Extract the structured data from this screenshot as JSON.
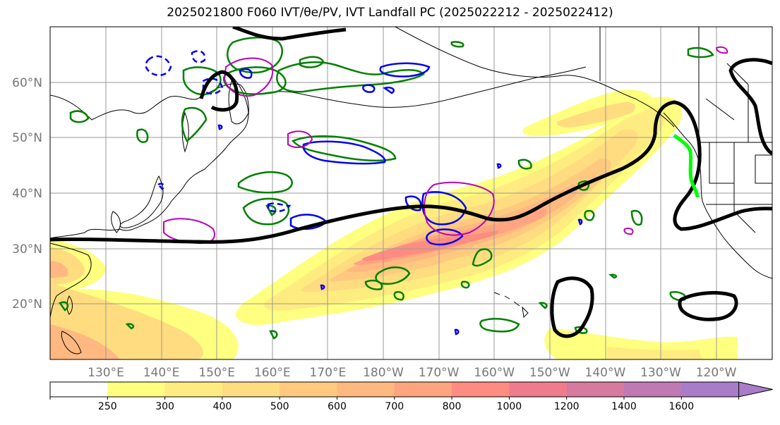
{
  "title": "2025021800 F060 IVT/θe/PV, IVT Landfall PC (2025022212 - 2025022412)",
  "latitude_labels": [
    "60°N",
    "50°N",
    "40°N",
    "30°N",
    "20°N"
  ],
  "longitude_labels": [
    "130°E",
    "140°E",
    "150°E",
    "160°E",
    "170°E",
    "180°W",
    "170°W",
    "160°W",
    "150°W",
    "140°W",
    "130°W",
    "120°W"
  ],
  "colorbar": {
    "tick_labels": [
      "250",
      "300",
      "400",
      "500",
      "600",
      "700",
      "800",
      "1000",
      "1200",
      "1400",
      "1600"
    ],
    "colors": [
      "#ffffff",
      "#ffff80",
      "#ffec80",
      "#ffdc80",
      "#ffca80",
      "#ffb880",
      "#ffa480",
      "#ff8c80",
      "#ef7c8c",
      "#d77aa0",
      "#bf7ab4",
      "#a87cc8"
    ]
  },
  "colors": {
    "ivt_contour": "#000000",
    "theta_e": "#008000",
    "pv_positive": "#0000ee",
    "pv_negative": "#bb00bb",
    "landfall": "#00ff00",
    "coastline": "#000000",
    "gridline": "#9a9a9a"
  }
}
